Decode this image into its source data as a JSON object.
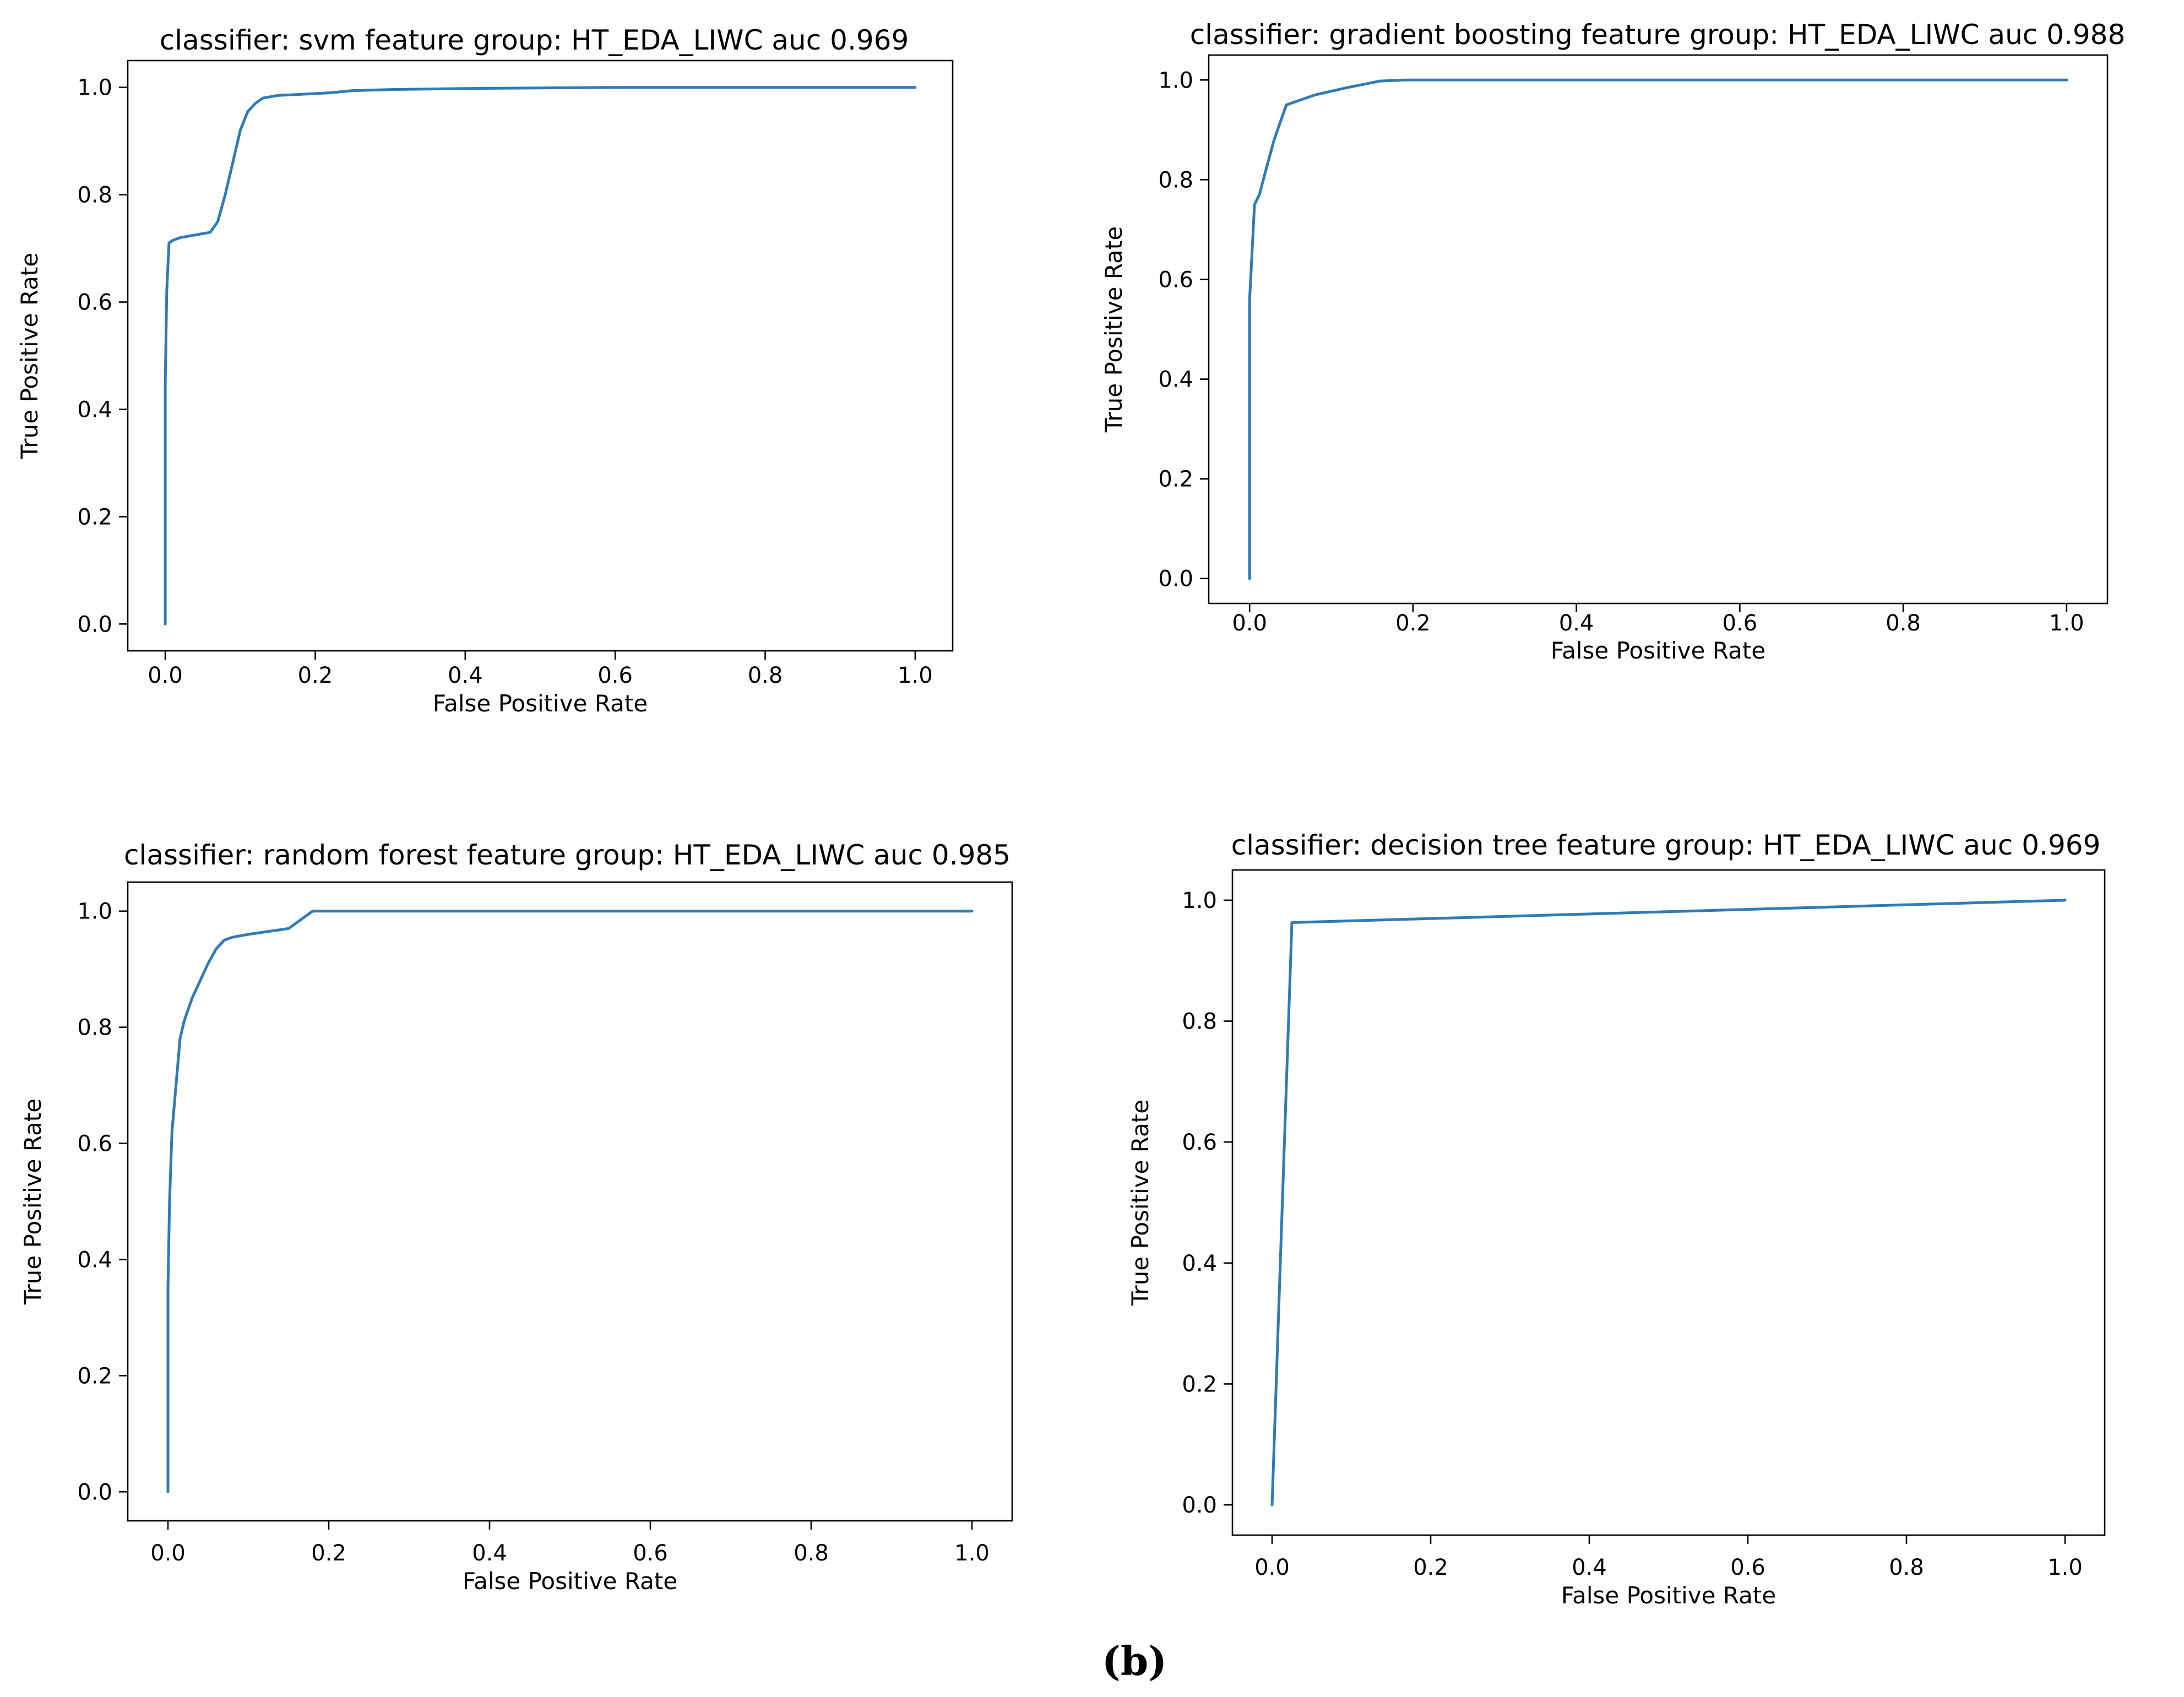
{
  "figure": {
    "caption": "(b)"
  },
  "colors": {
    "line": "#2f7bb5"
  },
  "chart_data": [
    {
      "type": "line",
      "title": "classifier: svm feature group: HT_EDA_LIWC auc 0.969",
      "xlabel": "False Positive Rate",
      "ylabel": "True Positive Rate",
      "xlim": [
        -0.05,
        1.05
      ],
      "ylim": [
        -0.05,
        1.05
      ],
      "xticks": [
        0.0,
        0.2,
        0.4,
        0.6,
        0.8,
        1.0
      ],
      "yticks": [
        0.0,
        0.2,
        0.4,
        0.6,
        0.8,
        1.0
      ],
      "grid": false,
      "series": [
        {
          "x": [
            0.0,
            0.0,
            0.002,
            0.005,
            0.01,
            0.02,
            0.04,
            0.06,
            0.07,
            0.08,
            0.09,
            0.1,
            0.11,
            0.12,
            0.13,
            0.15,
            0.18,
            0.22,
            0.25,
            0.3,
            0.4,
            0.5,
            0.6,
            0.8,
            1.0
          ],
          "y": [
            0.0,
            0.45,
            0.62,
            0.71,
            0.715,
            0.72,
            0.725,
            0.73,
            0.75,
            0.8,
            0.86,
            0.92,
            0.955,
            0.97,
            0.98,
            0.985,
            0.987,
            0.99,
            0.994,
            0.996,
            0.998,
            0.999,
            1.0,
            1.0,
            1.0
          ]
        }
      ]
    },
    {
      "type": "line",
      "title": "classifier: gradient boosting feature group: HT_EDA_LIWC auc 0.988",
      "xlabel": "False Positive Rate",
      "ylabel": "True Positive Rate",
      "xlim": [
        -0.05,
        1.05
      ],
      "ylim": [
        -0.05,
        1.05
      ],
      "xticks": [
        0.0,
        0.2,
        0.4,
        0.6,
        0.8,
        1.0
      ],
      "yticks": [
        0.0,
        0.2,
        0.4,
        0.6,
        0.8,
        1.0
      ],
      "grid": false,
      "series": [
        {
          "x": [
            0.0,
            0.0,
            0.002,
            0.006,
            0.012,
            0.02,
            0.03,
            0.045,
            0.08,
            0.12,
            0.16,
            0.19,
            0.25,
            0.4,
            0.6,
            0.8,
            1.0
          ],
          "y": [
            0.0,
            0.56,
            0.62,
            0.75,
            0.77,
            0.82,
            0.88,
            0.95,
            0.97,
            0.985,
            0.998,
            1.0,
            1.0,
            1.0,
            1.0,
            1.0,
            1.0
          ]
        }
      ]
    },
    {
      "type": "line",
      "title": "classifier: random forest feature group: HT_EDA_LIWC auc 0.985",
      "xlabel": "False Positive Rate",
      "ylabel": "True Positive Rate",
      "xlim": [
        -0.05,
        1.05
      ],
      "ylim": [
        -0.05,
        1.05
      ],
      "xticks": [
        0.0,
        0.2,
        0.4,
        0.6,
        0.8,
        1.0
      ],
      "yticks": [
        0.0,
        0.2,
        0.4,
        0.6,
        0.8,
        1.0
      ],
      "grid": false,
      "series": [
        {
          "x": [
            0.0,
            0.0,
            0.002,
            0.005,
            0.01,
            0.015,
            0.02,
            0.03,
            0.04,
            0.05,
            0.06,
            0.07,
            0.08,
            0.1,
            0.15,
            0.165,
            0.18,
            0.2,
            0.4,
            0.6,
            0.8,
            1.0
          ],
          "y": [
            0.0,
            0.35,
            0.5,
            0.62,
            0.7,
            0.78,
            0.81,
            0.85,
            0.88,
            0.91,
            0.935,
            0.95,
            0.955,
            0.96,
            0.97,
            0.985,
            1.0,
            1.0,
            1.0,
            1.0,
            1.0,
            1.0
          ]
        }
      ]
    },
    {
      "type": "line",
      "title": "classifier: decision tree feature group: HT_EDA_LIWC auc 0.969",
      "xlabel": "False Positive Rate",
      "ylabel": "True Positive Rate",
      "xlim": [
        -0.05,
        1.05
      ],
      "ylim": [
        -0.05,
        1.05
      ],
      "xticks": [
        0.0,
        0.2,
        0.4,
        0.6,
        0.8,
        1.0
      ],
      "yticks": [
        0.0,
        0.2,
        0.4,
        0.6,
        0.8,
        1.0
      ],
      "grid": false,
      "series": [
        {
          "x": [
            0.0,
            0.025,
            1.0
          ],
          "y": [
            0.0,
            0.963,
            1.0
          ]
        }
      ]
    }
  ]
}
